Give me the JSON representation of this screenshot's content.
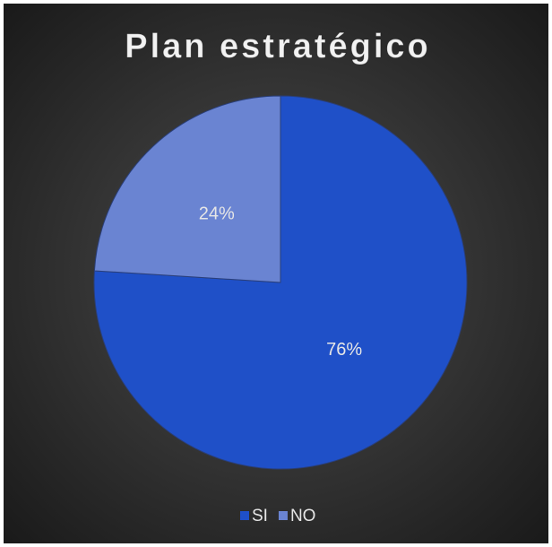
{
  "chart_data": {
    "type": "pie",
    "title": "Plan estratégico",
    "categories": [
      "SI",
      "NO"
    ],
    "values": [
      76,
      24
    ],
    "value_labels": [
      "76%",
      "24%"
    ],
    "colors": [
      "#1f50c8",
      "#6a84d2"
    ],
    "legend": "bottom"
  }
}
